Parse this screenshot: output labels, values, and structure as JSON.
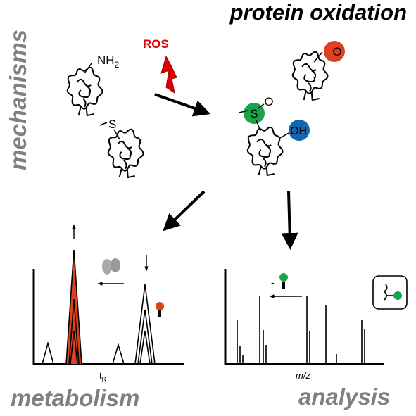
{
  "title": "protein oxidation",
  "side_label": "mechanisms",
  "trigger": "ROS",
  "groups": {
    "amine": {
      "main": "NH",
      "sub": "2"
    },
    "thioether": "S",
    "sulfoxide_s": "S",
    "sulfoxide_o": "O",
    "carbonyl": "O",
    "hydroxyl": "OH"
  },
  "left_panel": {
    "x_label": {
      "main": "t",
      "sub": "R"
    },
    "caption": "metabolism"
  },
  "right_panel": {
    "x_label": "m/z",
    "caption": "analysis",
    "mass_shift": "-"
  }
}
